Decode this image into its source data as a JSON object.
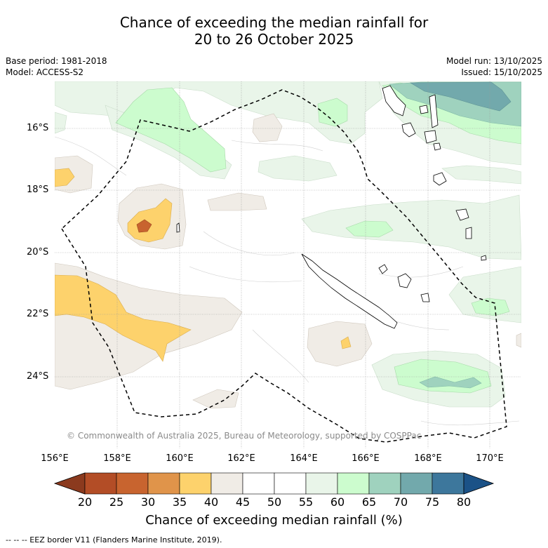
{
  "header": {
    "title_line1": "Chance of exceeding the median rainfall for",
    "title_line2": "20 to 26 October 2025",
    "base_period": "Base period: 1981-2018",
    "model": "Model: ACCESS-S2",
    "model_run": "Model run: 13/10/2025",
    "issued": "Issued: 15/10/2025"
  },
  "map": {
    "lat_labels": [
      "16°S",
      "18°S",
      "20°S",
      "22°S",
      "24°S"
    ],
    "lon_labels": [
      "156°E",
      "158°E",
      "160°E",
      "162°E",
      "164°E",
      "166°E",
      "168°E",
      "170°E"
    ],
    "copyright": "© Commonwealth of Australia 2025, Bureau of Meteorology, supported by COSPPac",
    "extent": {
      "lon_min": 156,
      "lon_max": 171,
      "lat_north": -14.8,
      "lat_south": -26.6
    }
  },
  "colorbar": {
    "ticks": [
      "20",
      "25",
      "30",
      "35",
      "40",
      "45",
      "50",
      "55",
      "60",
      "65",
      "70",
      "75",
      "80"
    ],
    "colors": [
      "#b34d26",
      "#c8642f",
      "#e0944a",
      "#fdd26c",
      "#f0ece6",
      "#ffffff",
      "#ffffff",
      "#e9f5e9",
      "#ccfcce",
      "#9fd2be",
      "#72a9ac",
      "#3d779c"
    ],
    "low_color": "#8b3a1e",
    "high_color": "#1b5287",
    "title": "Chance of exceeding median rainfall (%)"
  },
  "footnote": "--  --  -- EEZ border V11 (Flanders Marine Institute, 2019)."
}
